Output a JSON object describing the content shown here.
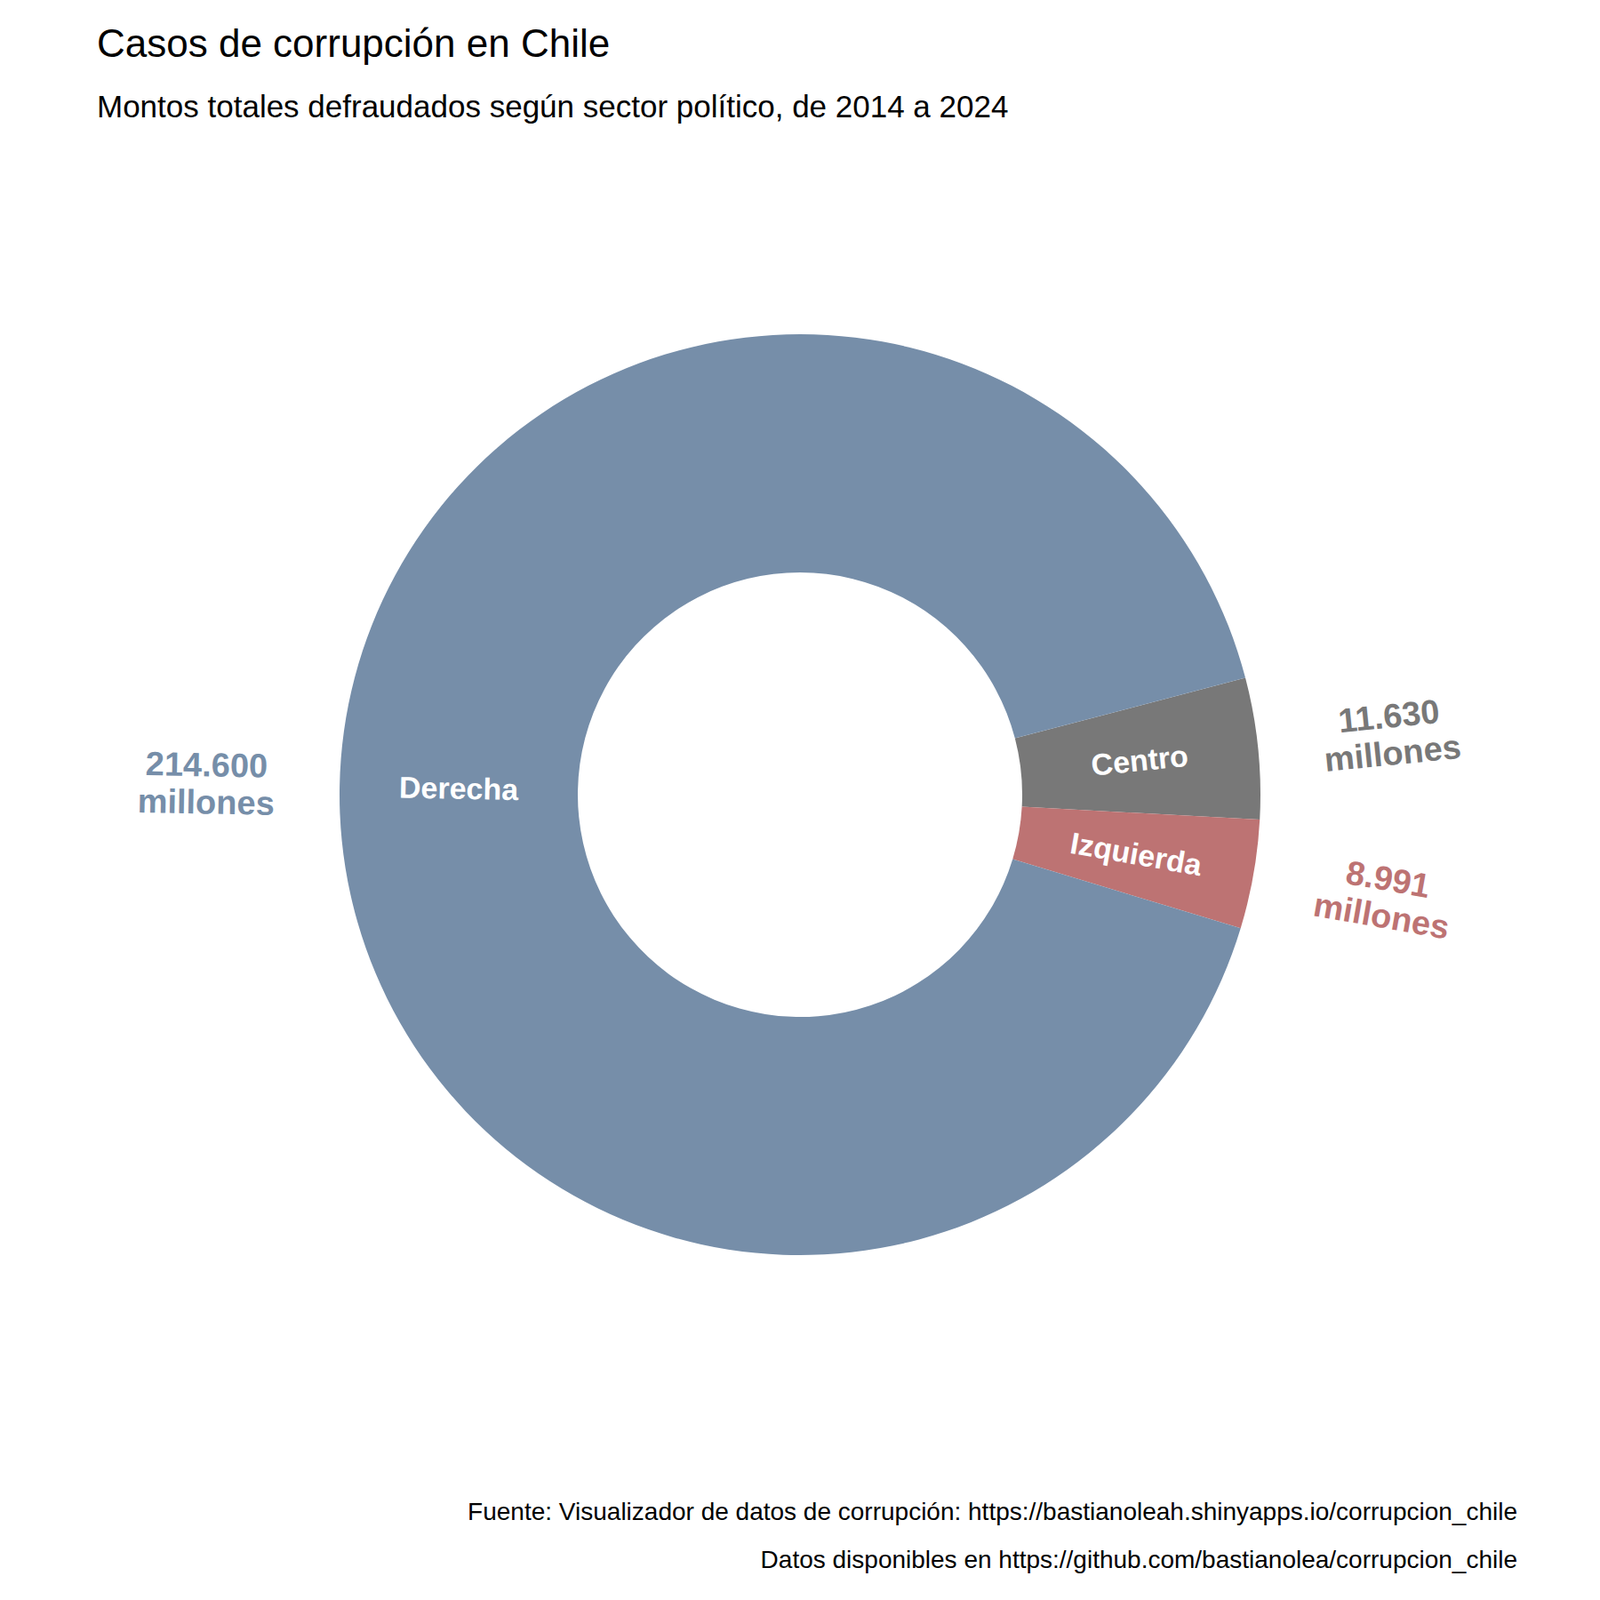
{
  "chart_data": {
    "type": "donut",
    "title": "Casos de corrupción en Chile",
    "subtitle": "Montos totales defraudados según sector político, de 2014 a 2024",
    "categories": [
      "Centro",
      "Izquierda",
      "Derecha"
    ],
    "values": [
      11630,
      8991,
      214600
    ],
    "value_labels": [
      "11.630 millones",
      "8.991 millones",
      "214.600 millones"
    ],
    "colors": [
      "#787878",
      "#bd7373",
      "#768ea9"
    ],
    "data_labels": true,
    "caption": [
      "Fuente: Visualizador de datos de corrupción: https://bastianoleah.shinyapps.io/corrupcion_chile",
      "Datos disponibles en https://github.com/bastianolea/corrupcion_chile"
    ]
  }
}
